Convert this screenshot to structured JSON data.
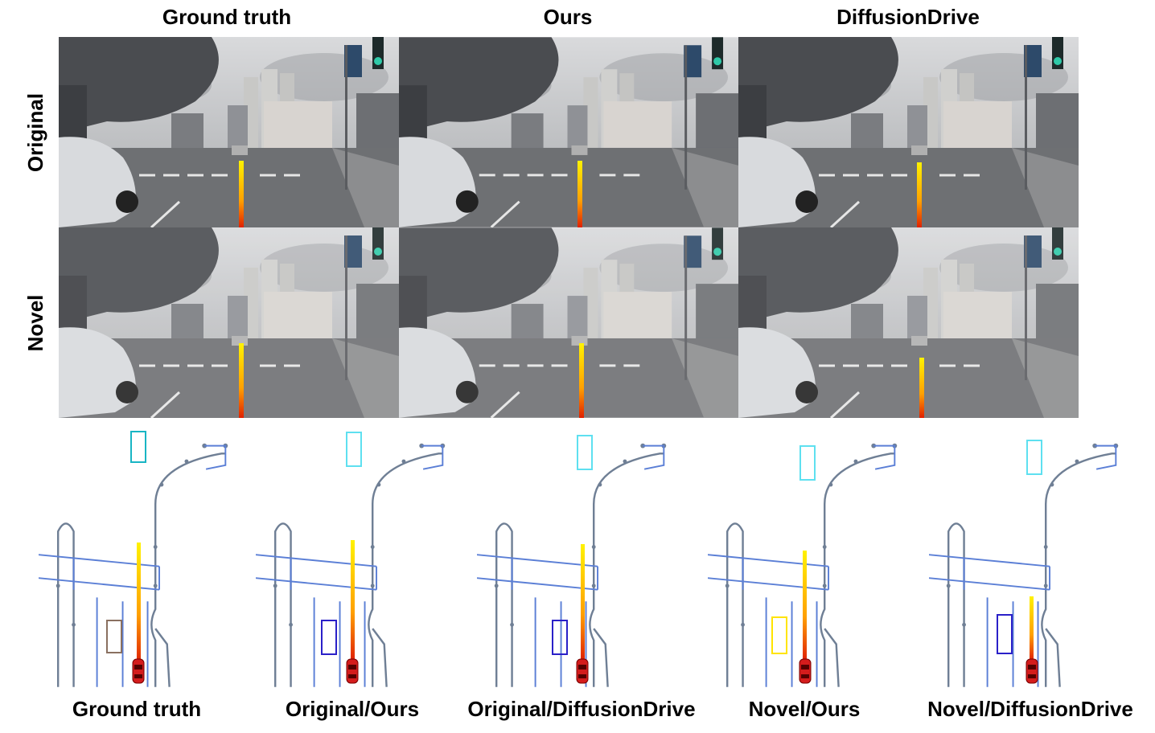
{
  "column_headers": [
    "Ground truth",
    "Ours",
    "DiffusionDrive"
  ],
  "row_labels": [
    "Original",
    "Novel"
  ],
  "bev_labels": [
    "Ground truth",
    "Original/Ours",
    "Original/DiffusionDrive",
    "Novel/Ours",
    "Novel/DiffusionDrive"
  ]
}
